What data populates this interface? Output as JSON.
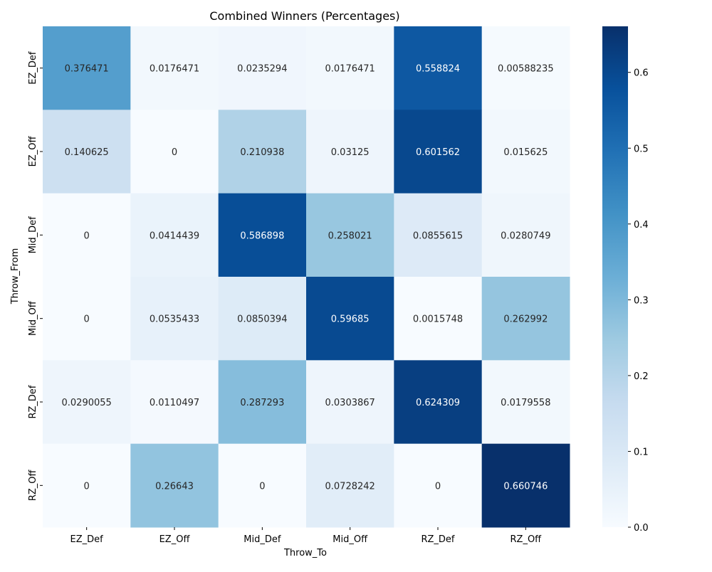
{
  "chart_data": {
    "type": "heatmap",
    "title": "Combined Winners (Percentages)",
    "xlabel": "Throw_To",
    "ylabel": "Throw_From",
    "x_categories": [
      "EZ_Def",
      "EZ_Off",
      "Mid_Def",
      "Mid_Off",
      "RZ_Def",
      "RZ_Off"
    ],
    "y_categories": [
      "EZ_Def",
      "EZ_Off",
      "Mid_Def",
      "Mid_Off",
      "RZ_Def",
      "RZ_Off"
    ],
    "values": [
      [
        0.376471,
        0.0176471,
        0.0235294,
        0.0176471,
        0.558824,
        0.00588235
      ],
      [
        0.140625,
        0,
        0.210938,
        0.03125,
        0.601562,
        0.015625
      ],
      [
        0,
        0.0414439,
        0.586898,
        0.258021,
        0.0855615,
        0.0280749
      ],
      [
        0,
        0.0535433,
        0.0850394,
        0.59685,
        0.0015748,
        0.262992
      ],
      [
        0.0290055,
        0.0110497,
        0.287293,
        0.0303867,
        0.624309,
        0.0179558
      ],
      [
        0,
        0.26643,
        0,
        0.0728242,
        0,
        0.660746
      ]
    ],
    "cell_labels": [
      [
        "0.376471",
        "0.0176471",
        "0.0235294",
        "0.0176471",
        "0.558824",
        "0.00588235"
      ],
      [
        "0.140625",
        "0",
        "0.210938",
        "0.03125",
        "0.601562",
        "0.015625"
      ],
      [
        "0",
        "0.0414439",
        "0.586898",
        "0.258021",
        "0.0855615",
        "0.0280749"
      ],
      [
        "0",
        "0.0535433",
        "0.0850394",
        "0.59685",
        "0.0015748",
        "0.262992"
      ],
      [
        "0.0290055",
        "0.0110497",
        "0.287293",
        "0.0303867",
        "0.624309",
        "0.0179558"
      ],
      [
        "0",
        "0.26643",
        "0",
        "0.0728242",
        "0",
        "0.660746"
      ]
    ],
    "colormap": "Blues",
    "vmin": 0,
    "vmax": 0.660746,
    "colorbar": {
      "ticks": [
        0.0,
        0.1,
        0.2,
        0.3,
        0.4,
        0.5,
        0.6
      ],
      "tick_labels": [
        "0.0",
        "0.1",
        "0.2",
        "0.3",
        "0.4",
        "0.5",
        "0.6"
      ]
    },
    "text_color_dark": "#262626",
    "text_color_light": "#ffffff"
  }
}
